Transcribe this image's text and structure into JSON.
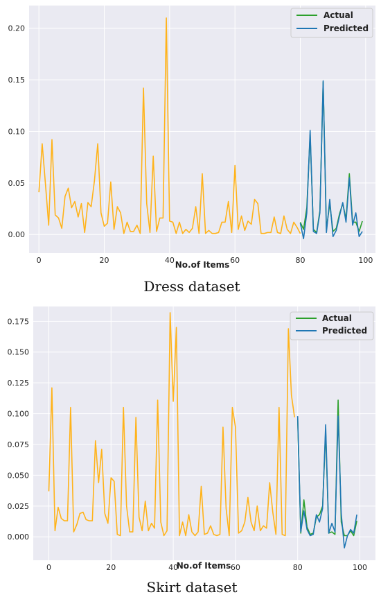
{
  "chart_data": [
    {
      "type": "line",
      "caption": "Dress dataset",
      "xlabel": "No.of Items",
      "ylabel": "",
      "xlim": [
        -3,
        103
      ],
      "ylim": [
        -0.018,
        0.222
      ],
      "xticks": [
        0,
        20,
        40,
        60,
        80,
        100
      ],
      "yticks": [
        0.0,
        0.05,
        0.1,
        0.15,
        0.2
      ],
      "ytick_labels": [
        "0.00",
        "0.05",
        "0.10",
        "0.15",
        "0.20"
      ],
      "grid": true,
      "legend_position": "top-right",
      "legend": [
        "Actual",
        "Predicted"
      ],
      "colors": {
        "history": "#ffb31a",
        "actual": "#2ca02c",
        "predicted": "#1f77b4",
        "background": "#eaeaf2"
      },
      "series": [
        {
          "role": "history",
          "x": [
            0,
            1,
            2,
            3,
            4,
            5,
            6,
            7,
            8,
            9,
            10,
            11,
            12,
            13,
            14,
            15,
            16,
            17,
            18,
            19,
            20,
            21,
            22,
            23,
            24,
            25,
            26,
            27,
            28,
            29,
            30,
            31,
            32,
            33,
            34,
            35,
            36,
            37,
            38,
            39,
            40,
            41,
            42,
            43,
            44,
            45,
            46,
            47,
            48,
            49,
            50,
            51,
            52,
            53,
            54,
            55,
            56,
            57,
            58,
            59,
            60,
            61,
            62,
            63,
            64,
            65,
            66,
            67,
            68,
            69,
            70,
            71,
            72,
            73,
            74,
            75,
            76,
            77,
            78,
            79,
            80
          ],
          "values": [
            0.041,
            0.088,
            0.049,
            0.009,
            0.092,
            0.019,
            0.016,
            0.006,
            0.037,
            0.045,
            0.026,
            0.032,
            0.017,
            0.03,
            0.002,
            0.031,
            0.027,
            0.052,
            0.088,
            0.021,
            0.008,
            0.011,
            0.051,
            0.005,
            0.027,
            0.021,
            0.001,
            0.012,
            0.003,
            0.003,
            0.009,
            0.001,
            0.142,
            0.03,
            0.002,
            0.076,
            0.003,
            0.016,
            0.016,
            0.21,
            0.013,
            0.012,
            0.001,
            0.012,
            0.001,
            0.005,
            0.002,
            0.006,
            0.027,
            0.001,
            0.059,
            0.001,
            0.004,
            0.001,
            0.001,
            0.002,
            0.012,
            0.012,
            0.032,
            0.002,
            0.067,
            0.005,
            0.018,
            0.004,
            0.013,
            0.01,
            0.034,
            0.03,
            0.001,
            0.001,
            0.002,
            0.002,
            0.017,
            0.002,
            0.001,
            0.018,
            0.005,
            0.001,
            0.012,
            0.007,
            0.001
          ]
        },
        {
          "name": "Actual",
          "role": "actual",
          "x": [
            80,
            81,
            82,
            83,
            84,
            85,
            86,
            87,
            88,
            89,
            90,
            91,
            92,
            93,
            94,
            95,
            96,
            97,
            98,
            99
          ],
          "values": [
            0.012,
            0.005,
            0.026,
            0.097,
            0.005,
            0.002,
            0.023,
            0.148,
            0.005,
            0.03,
            0.003,
            0.006,
            0.02,
            0.03,
            0.015,
            0.059,
            0.012,
            0.012,
            0.003,
            0.013
          ]
        },
        {
          "name": "Predicted",
          "role": "predicted",
          "x": [
            80,
            81,
            82,
            83,
            84,
            85,
            86,
            87,
            88,
            89,
            90,
            91,
            92,
            93,
            94,
            95,
            96,
            97,
            98,
            99
          ],
          "values": [
            0.011,
            -0.004,
            0.021,
            0.101,
            0.003,
            0.001,
            0.021,
            0.149,
            0.002,
            0.034,
            -0.002,
            0.004,
            0.018,
            0.031,
            0.012,
            0.055,
            0.009,
            0.021,
            -0.002,
            0.003
          ]
        }
      ]
    },
    {
      "type": "line",
      "caption": "Skirt dataset",
      "xlabel": "No.of Items",
      "ylabel": "",
      "xlim": [
        -5,
        105
      ],
      "ylim": [
        -0.019,
        0.187
      ],
      "xticks": [
        0,
        20,
        40,
        60,
        80,
        100
      ],
      "yticks": [
        0.0,
        0.025,
        0.05,
        0.075,
        0.1,
        0.125,
        0.15,
        0.175
      ],
      "ytick_labels": [
        "0.000",
        "0.025",
        "0.050",
        "0.075",
        "0.100",
        "0.125",
        "0.150",
        "0.175"
      ],
      "grid": true,
      "legend_position": "top-right",
      "legend": [
        "Actual",
        "Predicted"
      ],
      "colors": {
        "history": "#ffb31a",
        "actual": "#2ca02c",
        "predicted": "#1f77b4",
        "background": "#eaeaf2"
      },
      "series": [
        {
          "role": "history",
          "x": [
            0,
            1,
            2,
            3,
            4,
            5,
            6,
            7,
            8,
            9,
            10,
            11,
            12,
            13,
            14,
            15,
            16,
            17,
            18,
            19,
            20,
            21,
            22,
            23,
            24,
            25,
            26,
            27,
            28,
            29,
            30,
            31,
            32,
            33,
            34,
            35,
            36,
            37,
            38,
            39,
            40,
            41,
            42,
            43,
            44,
            45,
            46,
            47,
            48,
            49,
            50,
            51,
            52,
            53,
            54,
            55,
            56,
            57,
            58,
            59,
            60,
            61,
            62,
            63,
            64,
            65,
            66,
            67,
            68,
            69,
            70,
            71,
            72,
            73,
            74,
            75,
            76,
            77,
            78,
            79
          ],
          "values": [
            0.037,
            0.121,
            0.005,
            0.024,
            0.015,
            0.013,
            0.013,
            0.105,
            0.004,
            0.01,
            0.019,
            0.02,
            0.014,
            0.013,
            0.013,
            0.078,
            0.044,
            0.071,
            0.019,
            0.011,
            0.048,
            0.045,
            0.002,
            0.001,
            0.105,
            0.025,
            0.004,
            0.004,
            0.097,
            0.016,
            0.005,
            0.029,
            0.005,
            0.011,
            0.007,
            0.111,
            0.012,
            0.001,
            0.005,
            0.182,
            0.11,
            0.17,
            0.001,
            0.012,
            0.001,
            0.018,
            0.004,
            0.001,
            0.004,
            0.041,
            0.002,
            0.003,
            0.009,
            0.002,
            0.001,
            0.002,
            0.089,
            0.023,
            0.001,
            0.105,
            0.089,
            0.003,
            0.005,
            0.012,
            0.032,
            0.012,
            0.005,
            0.025,
            0.005,
            0.009,
            0.007,
            0.044,
            0.02,
            0.002,
            0.105,
            0.002,
            0.001,
            0.169,
            0.115,
            0.097
          ]
        },
        {
          "name": "Actual",
          "role": "actual",
          "x": [
            80,
            81,
            82,
            83,
            84,
            85,
            86,
            87,
            88,
            89,
            90,
            91,
            92,
            93,
            94,
            95,
            96,
            97,
            98,
            99
          ],
          "values": [
            0.096,
            0.003,
            0.03,
            0.008,
            0.002,
            0.003,
            0.016,
            0.018,
            0.025,
            0.086,
            0.003,
            0.004,
            0.002,
            0.111,
            0.012,
            0.001,
            0.001,
            0.005,
            0.001,
            0.013
          ]
        },
        {
          "name": "Predicted",
          "role": "predicted",
          "x": [
            80,
            81,
            82,
            83,
            84,
            85,
            86,
            87,
            88,
            89,
            90,
            91,
            92,
            93,
            94,
            95,
            96,
            97,
            98,
            99
          ],
          "values": [
            0.098,
            0.004,
            0.021,
            0.006,
            0.001,
            0.002,
            0.018,
            0.012,
            0.023,
            0.091,
            0.003,
            0.011,
            0.004,
            0.098,
            0.019,
            -0.009,
            0.001,
            0.006,
            0.003,
            0.018
          ]
        }
      ]
    }
  ]
}
